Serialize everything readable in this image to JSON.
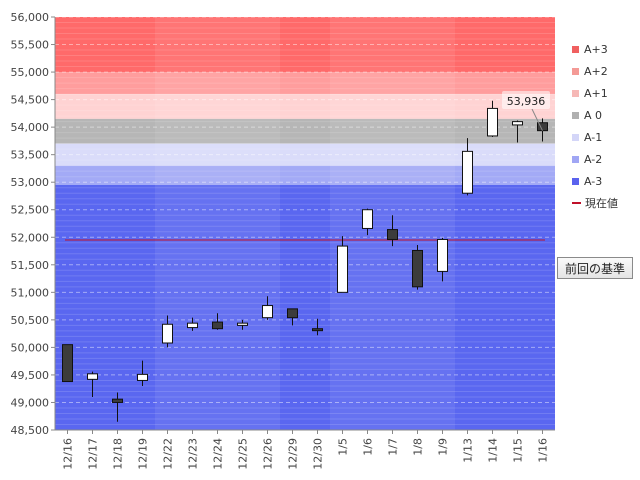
{
  "chart_data": {
    "type": "candlestick",
    "y_ticks": [
      "56,000",
      "55,500",
      "55,000",
      "54,500",
      "54,000",
      "53,500",
      "53,000",
      "52,500",
      "52,000",
      "51,500",
      "51,000",
      "50,500",
      "50,000",
      "49,500",
      "49,000",
      "48,500"
    ],
    "ylim": [
      48500,
      56000
    ],
    "categories": [
      "12/16",
      "12/17",
      "12/18",
      "12/19",
      "12/22",
      "12/23",
      "12/24",
      "12/25",
      "12/26",
      "12/29",
      "12/30",
      "1/5",
      "1/6",
      "1/7",
      "1/8",
      "1/9",
      "1/13",
      "1/14",
      "1/15",
      "1/16"
    ],
    "candles": [
      {
        "o": 50050,
        "h": 50050,
        "l": 49380,
        "c": 49380
      },
      {
        "o": 49420,
        "h": 49560,
        "l": 49100,
        "c": 49520
      },
      {
        "o": 49060,
        "h": 49180,
        "l": 48650,
        "c": 49000
      },
      {
        "o": 49400,
        "h": 49760,
        "l": 49300,
        "c": 49510
      },
      {
        "o": 50080,
        "h": 50580,
        "l": 50000,
        "c": 50420
      },
      {
        "o": 50360,
        "h": 50540,
        "l": 50300,
        "c": 50440
      },
      {
        "o": 50460,
        "h": 50620,
        "l": 50320,
        "c": 50340
      },
      {
        "o": 50400,
        "h": 50500,
        "l": 50320,
        "c": 50440
      },
      {
        "o": 50540,
        "h": 50930,
        "l": 50500,
        "c": 50760
      },
      {
        "o": 50700,
        "h": 50700,
        "l": 50400,
        "c": 50540
      },
      {
        "o": 50340,
        "h": 50520,
        "l": 50220,
        "c": 50320
      },
      {
        "o": 51000,
        "h": 52020,
        "l": 51000,
        "c": 51840
      },
      {
        "o": 52160,
        "h": 52520,
        "l": 52040,
        "c": 52500
      },
      {
        "o": 52140,
        "h": 52400,
        "l": 51840,
        "c": 51960
      },
      {
        "o": 51760,
        "h": 51860,
        "l": 51050,
        "c": 51100
      },
      {
        "o": 51380,
        "h": 51990,
        "l": 51200,
        "c": 51960
      },
      {
        "o": 52800,
        "h": 53800,
        "l": 52760,
        "c": 53560
      },
      {
        "o": 53840,
        "h": 54480,
        "l": 53820,
        "c": 54340
      },
      {
        "o": 54040,
        "h": 54120,
        "l": 53720,
        "c": 54100
      },
      {
        "o": 54080,
        "h": 54160,
        "l": 53740,
        "c": 53936
      }
    ],
    "bands": [
      {
        "name": "A+3",
        "from": 55000,
        "to": 56000,
        "color": "#ff6a6a",
        "swatch": "#f06060"
      },
      {
        "name": "A+2",
        "from": 54600,
        "to": 55000,
        "color": "#ff9d9d",
        "swatch": "#f49a96"
      },
      {
        "name": "A+1",
        "from": 54150,
        "to": 54600,
        "color": "#ffd3d3",
        "swatch": "#f6b8b6"
      },
      {
        "name": "A 0",
        "from": 53700,
        "to": 54150,
        "color": "#b6b6b6",
        "swatch": "#b0b0b0"
      },
      {
        "name": "A-1",
        "from": 53300,
        "to": 53700,
        "color": "#dadcfa",
        "swatch": "#d4d6f8"
      },
      {
        "name": "A-2",
        "from": 52950,
        "to": 53300,
        "color": "#a3aaf6",
        "swatch": "#a0a6f4"
      },
      {
        "name": "A-3",
        "from": 48500,
        "to": 52950,
        "color": "#5a67f0",
        "swatch": "#5a62ee"
      }
    ],
    "current_value_label": "現在値",
    "current_value_color": "#c0102a",
    "baseline_value": 51950,
    "callout_text": "53,936",
    "grid": true,
    "legend_position": "right"
  },
  "baseline_button_label": "前回の基準"
}
